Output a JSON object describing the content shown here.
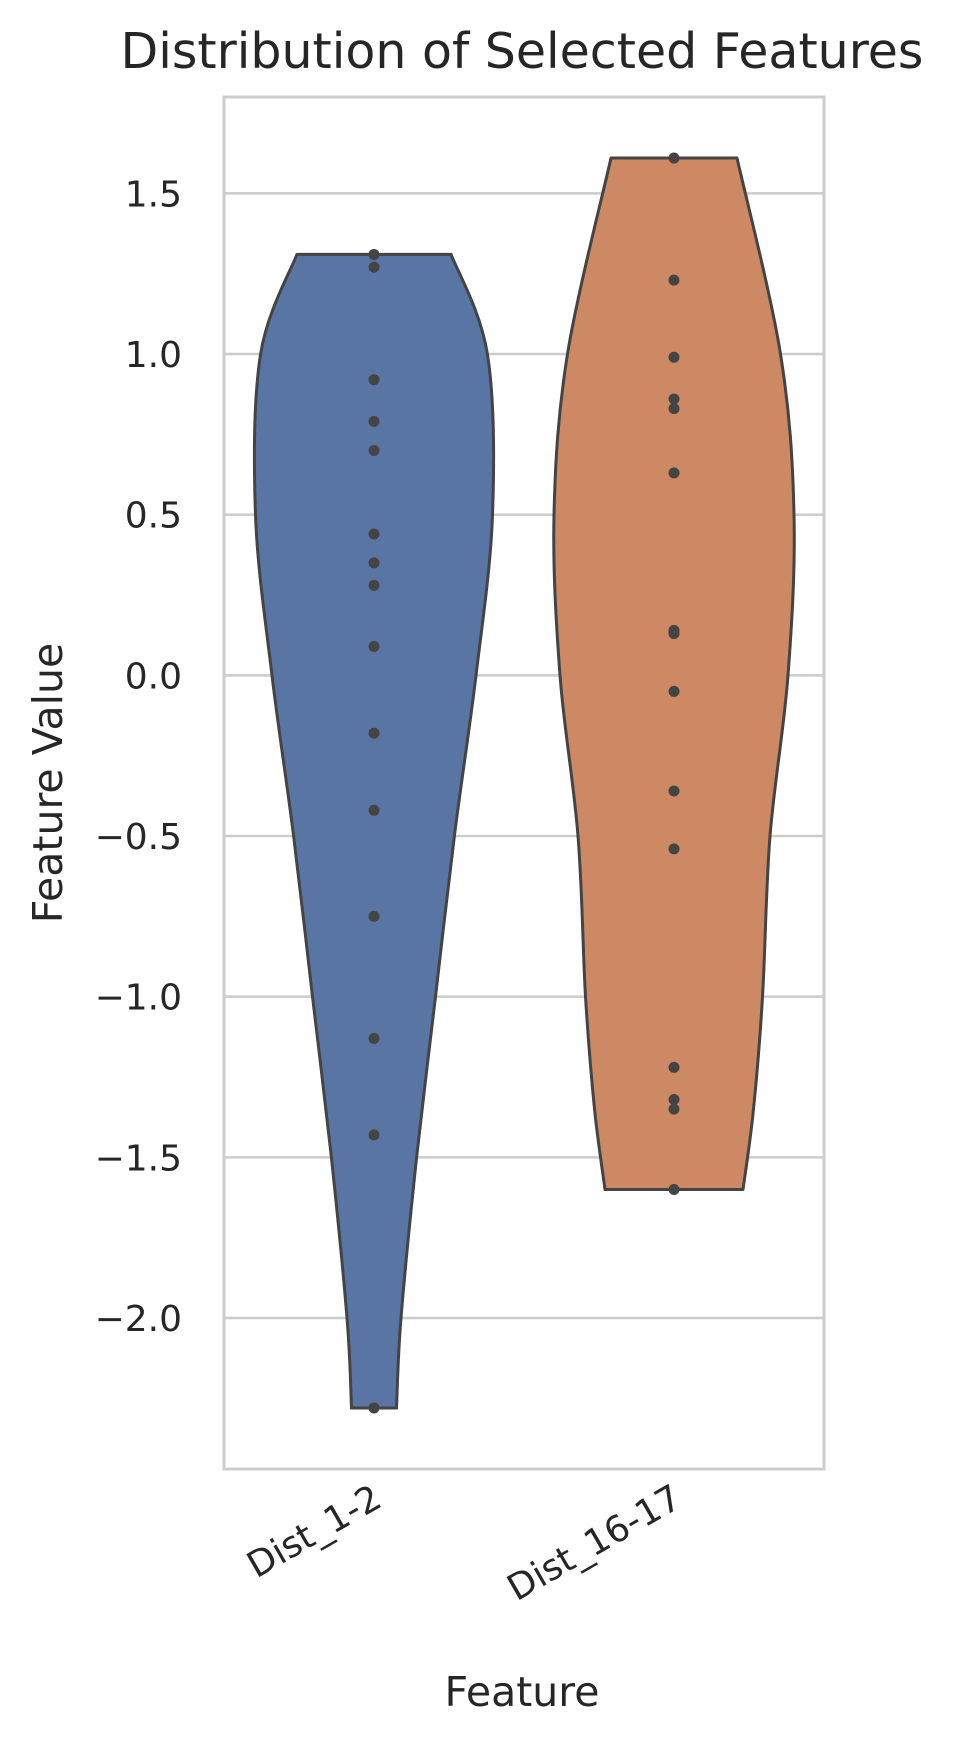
{
  "chart_data": {
    "type": "violin",
    "title": "Distribution of Selected Features",
    "xlabel": "Feature",
    "ylabel": "Feature Value",
    "ylim": [
      -2.47,
      1.8
    ],
    "yticks": [
      1.5,
      1.0,
      0.5,
      0.0,
      -0.5,
      -1.0,
      -1.5,
      -2.0
    ],
    "ytick_labels": [
      "1.5",
      "1.0",
      "0.5",
      "0.0",
      "−0.5",
      "−1.0",
      "−1.5",
      "−2.0"
    ],
    "grid": "horizontal",
    "series": [
      {
        "category": "Dist_1-2",
        "color": "#5975a4",
        "points": [
          1.31,
          1.27,
          0.92,
          0.79,
          0.7,
          0.44,
          0.35,
          0.28,
          0.09,
          -0.18,
          -0.42,
          -0.75,
          -1.13,
          -1.43,
          -2.28
        ],
        "outline": [
          [
            1.31,
            0.257
          ],
          [
            1.0,
            0.378
          ],
          [
            0.5,
            0.395
          ],
          [
            0.0,
            0.34
          ],
          [
            -0.5,
            0.268
          ],
          [
            -1.0,
            0.205
          ],
          [
            -1.5,
            0.142
          ],
          [
            -2.0,
            0.09
          ],
          [
            -2.28,
            0.075
          ]
        ]
      },
      {
        "category": "Dist_16-17",
        "color": "#cc8963",
        "points": [
          1.61,
          1.23,
          0.99,
          0.86,
          0.83,
          0.63,
          0.14,
          0.13,
          -0.05,
          -0.36,
          -0.54,
          -1.22,
          -1.32,
          -1.35,
          -1.6
        ],
        "outline": [
          [
            1.61,
            0.21
          ],
          [
            1.0,
            0.355
          ],
          [
            0.5,
            0.4
          ],
          [
            0.0,
            0.38
          ],
          [
            -0.5,
            0.32
          ],
          [
            -1.0,
            0.295
          ],
          [
            -1.35,
            0.265
          ],
          [
            -1.6,
            0.23
          ]
        ]
      }
    ]
  }
}
